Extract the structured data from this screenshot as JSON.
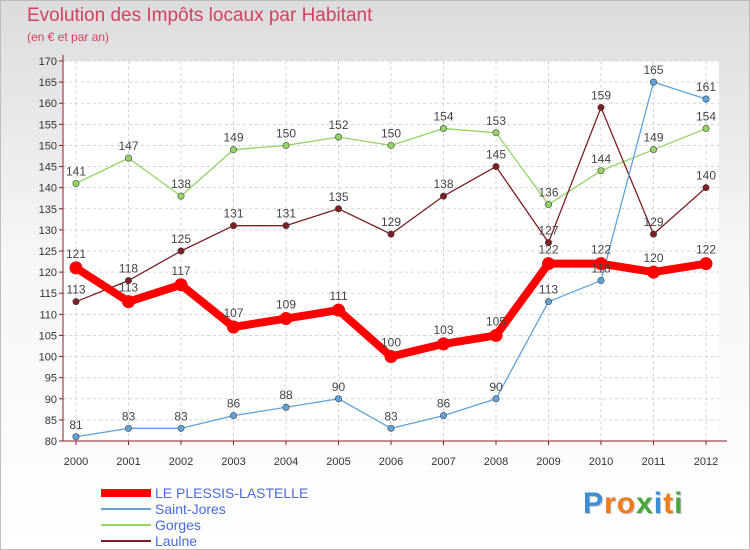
{
  "chart_data": {
    "type": "line",
    "title": "Evolution des Impôts locaux par Habitant",
    "subtitle": "(en € et par an)",
    "x": [
      2000,
      2001,
      2002,
      2003,
      2004,
      2005,
      2006,
      2007,
      2008,
      2009,
      2010,
      2011,
      2012
    ],
    "ylim": [
      80,
      170
    ],
    "yticks": [
      80,
      85,
      90,
      95,
      100,
      105,
      110,
      115,
      120,
      125,
      130,
      135,
      140,
      145,
      150,
      155,
      160,
      165,
      170
    ],
    "grid": true,
    "legend_position": "bottom-left",
    "series": [
      {
        "name": "Gorges",
        "color": "#93d465",
        "values": [
          141,
          147,
          138,
          149,
          150,
          152,
          150,
          154,
          153,
          136,
          144,
          149,
          154
        ]
      },
      {
        "name": "Laulne",
        "color": "#7b1f24",
        "values": [
          113,
          118,
          125,
          131,
          131,
          135,
          129,
          138,
          145,
          127,
          159,
          129,
          140
        ]
      },
      {
        "name": "Saint-Jores",
        "color": "#5fa3d9",
        "values": [
          81,
          83,
          83,
          86,
          88,
          90,
          83,
          86,
          90,
          113,
          118,
          165,
          161
        ]
      },
      {
        "name": "LE PLESSIS-LASTELLE",
        "color": "#ff0000",
        "values": [
          121,
          113,
          117,
          107,
          109,
          111,
          100,
          103,
          105,
          122,
          122,
          120,
          122
        ]
      }
    ],
    "legend_order": [
      "LE PLESSIS-LASTELLE",
      "Saint-Jores",
      "Gorges",
      "Laulne"
    ]
  },
  "brand": {
    "letters": [
      {
        "ch": "P",
        "color": "#3a8fd6"
      },
      {
        "ch": "r",
        "color": "#f07d1a"
      },
      {
        "ch": "o",
        "color": "#f07d1a"
      },
      {
        "ch": "x",
        "color": "#47a83c"
      },
      {
        "ch": "i",
        "color": "#3a8fd6"
      },
      {
        "ch": "t",
        "color": "#f07d1a"
      },
      {
        "ch": "i",
        "color": "#47a83c"
      }
    ]
  }
}
